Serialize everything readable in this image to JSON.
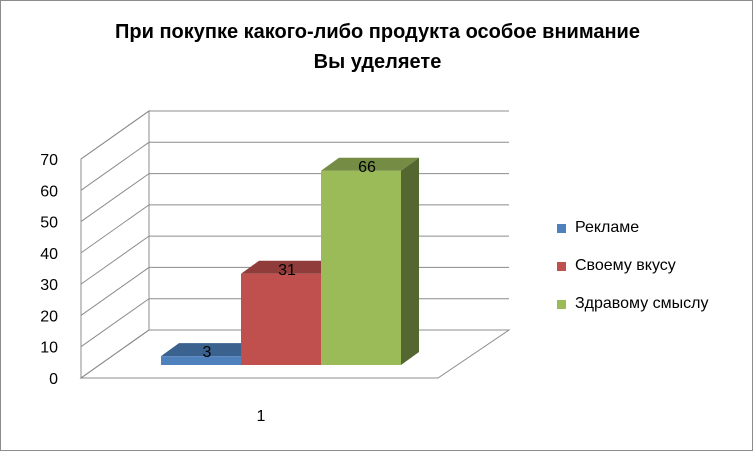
{
  "chart_data": {
    "type": "bar",
    "title": "При покупке какого-либо продукта особое внимание Вы уделяете",
    "title_lines": [
      "При покупке какого-либо продукта особое внимание",
      "Вы уделяете"
    ],
    "categories": [
      "1"
    ],
    "series": [
      {
        "name": "Рекламе",
        "values": [
          3
        ],
        "color": "#4f81bd"
      },
      {
        "name": "Своему вкусу",
        "values": [
          31
        ],
        "color": "#c0504d"
      },
      {
        "name": "Здравому смыслу",
        "values": [
          66
        ],
        "color": "#9bbb59"
      }
    ],
    "ylim": [
      0,
      70
    ],
    "yticks": [
      "0",
      "10",
      "20",
      "30",
      "40",
      "50",
      "60",
      "70"
    ],
    "grid": true,
    "legend_position": "right",
    "style": "3d-clustered-column",
    "data_labels": true
  }
}
